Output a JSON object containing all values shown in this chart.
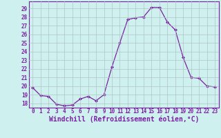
{
  "x": [
    0,
    1,
    2,
    3,
    4,
    5,
    6,
    7,
    8,
    9,
    10,
    11,
    12,
    13,
    14,
    15,
    16,
    17,
    18,
    19,
    20,
    21,
    22,
    23
  ],
  "y": [
    19.8,
    18.9,
    18.8,
    17.9,
    17.7,
    17.8,
    18.5,
    18.8,
    18.3,
    19.0,
    22.2,
    25.0,
    27.7,
    27.9,
    28.0,
    29.1,
    29.1,
    27.4,
    26.5,
    23.3,
    21.0,
    20.9,
    20.0,
    19.9
  ],
  "line_color": "#7b1fa2",
  "marker": "D",
  "marker_size": 2,
  "linewidth": 0.9,
  "xlabel": "Windchill (Refroidissement éolien,°C)",
  "xlabel_fontsize": 7,
  "ylim": [
    17.5,
    29.8
  ],
  "xlim": [
    -0.5,
    23.5
  ],
  "yticks": [
    18,
    19,
    20,
    21,
    22,
    23,
    24,
    25,
    26,
    27,
    28,
    29
  ],
  "xticks": [
    0,
    1,
    2,
    3,
    4,
    5,
    6,
    7,
    8,
    9,
    10,
    11,
    12,
    13,
    14,
    15,
    16,
    17,
    18,
    19,
    20,
    21,
    22,
    23
  ],
  "grid_color": "#b0c4c4",
  "background_color": "#cef0ee",
  "tick_fontsize": 5.5,
  "tick_color": "#7b1fa2",
  "spine_color": "#7b1fa2"
}
